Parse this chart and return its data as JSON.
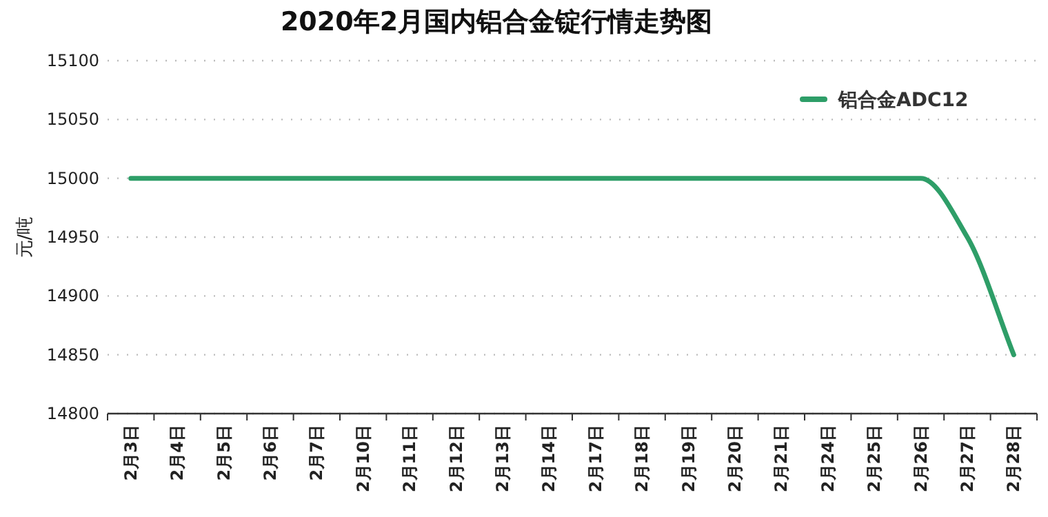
{
  "chart_data": {
    "type": "line",
    "title": "2020年2月国内铝合金锭行情走势图",
    "ylabel": "元/吨",
    "categories": [
      "2月3日",
      "2月4日",
      "2月5日",
      "2月6日",
      "2月7日",
      "2月10日",
      "2月11日",
      "2月12日",
      "2月13日",
      "2月14日",
      "2月17日",
      "2月18日",
      "2月19日",
      "2月20日",
      "2月21日",
      "2月24日",
      "2月25日",
      "2月26日",
      "2月27日",
      "2月28日"
    ],
    "series": [
      {
        "name": "铝合金ADC12",
        "color": "#2e9e68",
        "values": [
          15000,
          15000,
          15000,
          15000,
          15000,
          15000,
          15000,
          15000,
          15000,
          15000,
          15000,
          15000,
          15000,
          15000,
          15000,
          15000,
          15000,
          15000,
          14950,
          14850
        ]
      }
    ],
    "ylim": [
      14800,
      15100
    ],
    "yticks": [
      14800,
      14850,
      14900,
      14950,
      15000,
      15050,
      15100
    ],
    "grid": "y",
    "legend": "top right",
    "marker": "none",
    "line_style": "solid"
  }
}
